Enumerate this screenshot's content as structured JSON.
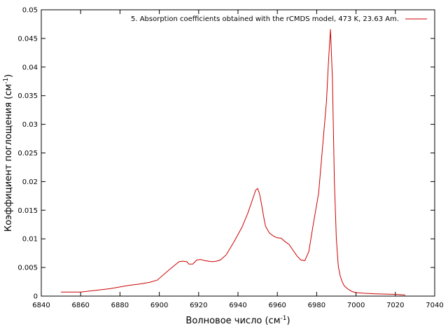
{
  "chart_data": {
    "type": "line",
    "xlabel": "Волновое число (см",
    "xlabel_sup": "-1",
    "xlabel_tail": ")",
    "ylabel": "Коэффициент поглощения (см",
    "ylabel_sup": "-1",
    "ylabel_tail": ")",
    "xlim": [
      6840,
      7040
    ],
    "ylim": [
      0,
      0.05
    ],
    "x_ticks": [
      6840,
      6860,
      6880,
      6900,
      6920,
      6940,
      6960,
      6980,
      7000,
      7020,
      7040
    ],
    "y_ticks": [
      0,
      0.005,
      0.01,
      0.015,
      0.02,
      0.025,
      0.03,
      0.035,
      0.04,
      0.045,
      0.05
    ],
    "x_tick_labels": [
      "6840",
      "6860",
      "6880",
      "6900",
      "6920",
      "6940",
      "6960",
      "6980",
      "7000",
      "7020",
      "7040"
    ],
    "y_tick_labels": [
      "0",
      "0.005",
      "0.01",
      "0.015",
      "0.02",
      "0.025",
      "0.03",
      "0.035",
      "0.04",
      "0.045",
      "0.05"
    ],
    "grid": false,
    "legend_position": "top-right",
    "series": [
      {
        "name": "5. Absorption coefficients obtained with the rCMDS model, 473 K, 23.63 Am.",
        "color": "#cc0000",
        "x": [
          6850,
          6860,
          6870,
          6875,
          6880,
          6885,
          6890,
          6895,
          6899,
          6905,
          6910,
          6912,
          6914,
          6915,
          6917,
          6919,
          6921,
          6923,
          6925,
          6927,
          6929,
          6931,
          6934,
          6938,
          6942,
          6945,
          6948,
          6949,
          6950,
          6951,
          6952,
          6953,
          6954,
          6955,
          6956,
          6958,
          6959,
          6960,
          6962,
          6964,
          6966,
          6968,
          6970,
          6972,
          6974,
          6976,
          6978,
          6980,
          6981,
          6983,
          6985,
          6986,
          6987,
          6988,
          6989,
          6990,
          6991,
          6992,
          6993,
          6994,
          6996,
          6998,
          7000,
          7004,
          7010,
          7020,
          7025
        ],
        "y": [
          0.0007,
          0.0007,
          0.0011,
          0.0013,
          0.0016,
          0.0019,
          0.0021,
          0.0024,
          0.0028,
          0.0046,
          0.006,
          0.0061,
          0.006,
          0.0056,
          0.0056,
          0.0063,
          0.0064,
          0.0062,
          0.0061,
          0.006,
          0.0061,
          0.0063,
          0.0072,
          0.0095,
          0.012,
          0.0145,
          0.0175,
          0.0185,
          0.0188,
          0.0178,
          0.016,
          0.014,
          0.0122,
          0.0116,
          0.011,
          0.0105,
          0.0103,
          0.0102,
          0.0101,
          0.0095,
          0.009,
          0.008,
          0.007,
          0.0063,
          0.0062,
          0.0078,
          0.012,
          0.016,
          0.018,
          0.026,
          0.034,
          0.041,
          0.0466,
          0.038,
          0.02,
          0.01,
          0.0052,
          0.0035,
          0.0025,
          0.0018,
          0.0012,
          0.0008,
          0.0006,
          0.0005,
          0.0004,
          0.0003,
          0.0002
        ]
      }
    ]
  }
}
